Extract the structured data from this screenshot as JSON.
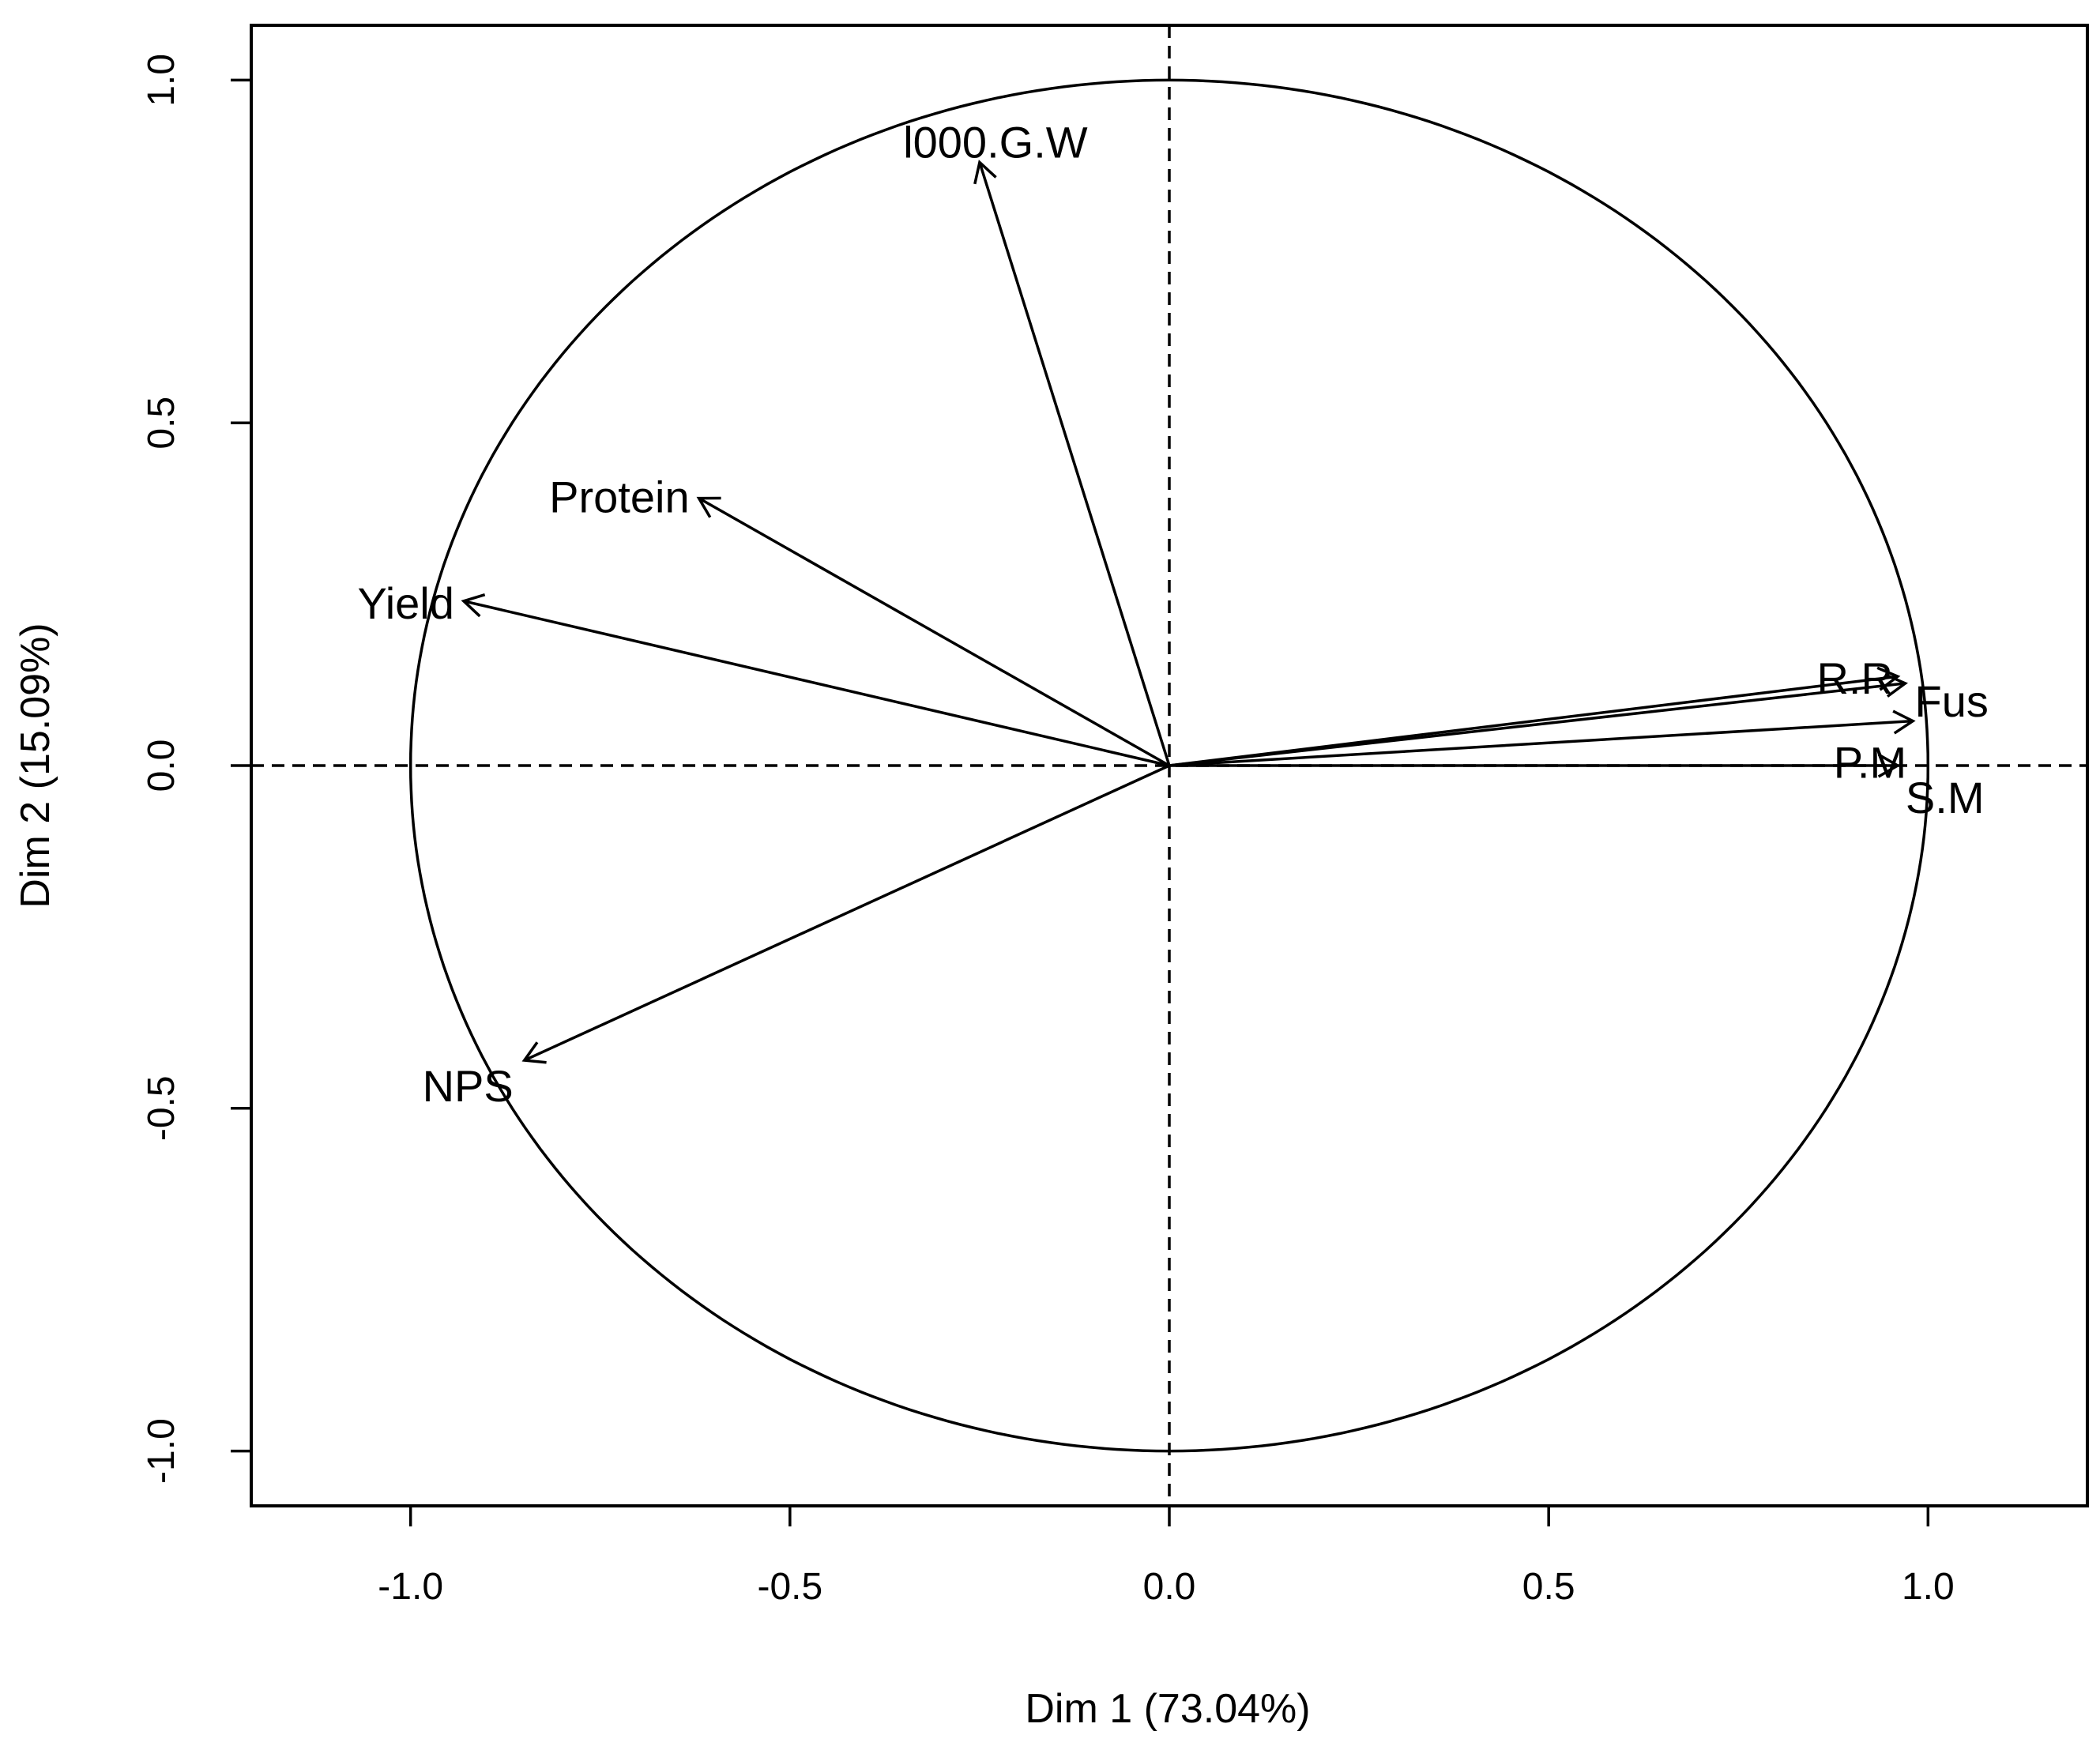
{
  "chart_data": {
    "type": "pca-variables-factor-map",
    "title": "",
    "xlabel": "Dim 1 (73.04%)",
    "ylabel": "Dim 2 (15.09%)",
    "xlim": [
      -1.21,
      1.21
    ],
    "ylim": [
      -1.08,
      1.08
    ],
    "x_ticks": [
      -1.0,
      -0.5,
      0.0,
      0.5,
      1.0
    ],
    "x_tick_labels": [
      "-1.0",
      "-0.5",
      "0.0",
      "0.5",
      "1.0"
    ],
    "y_ticks": [
      -1.0,
      -0.5,
      0.0,
      0.5,
      1.0
    ],
    "y_tick_labels": [
      "-1.0",
      "-0.5",
      "0.0",
      "0.5",
      "1.0"
    ],
    "unit_circle": true,
    "reference_lines": "dashed at x=0 and y=0",
    "variables": [
      {
        "name": "l000.G.W",
        "x": -0.25,
        "y": 0.88
      },
      {
        "name": "Protein",
        "x": -0.62,
        "y": 0.39
      },
      {
        "name": "Yield",
        "x": -0.93,
        "y": 0.24
      },
      {
        "name": "R.R",
        "x": 0.96,
        "y": 0.13
      },
      {
        "name": "Fus",
        "x": 0.97,
        "y": 0.12
      },
      {
        "name": "P.M",
        "x": 0.98,
        "y": 0.065
      },
      {
        "name": "S.M",
        "x": 0.96,
        "y": 0.0
      },
      {
        "name": "NPS",
        "x": -0.85,
        "y": -0.43
      }
    ]
  }
}
